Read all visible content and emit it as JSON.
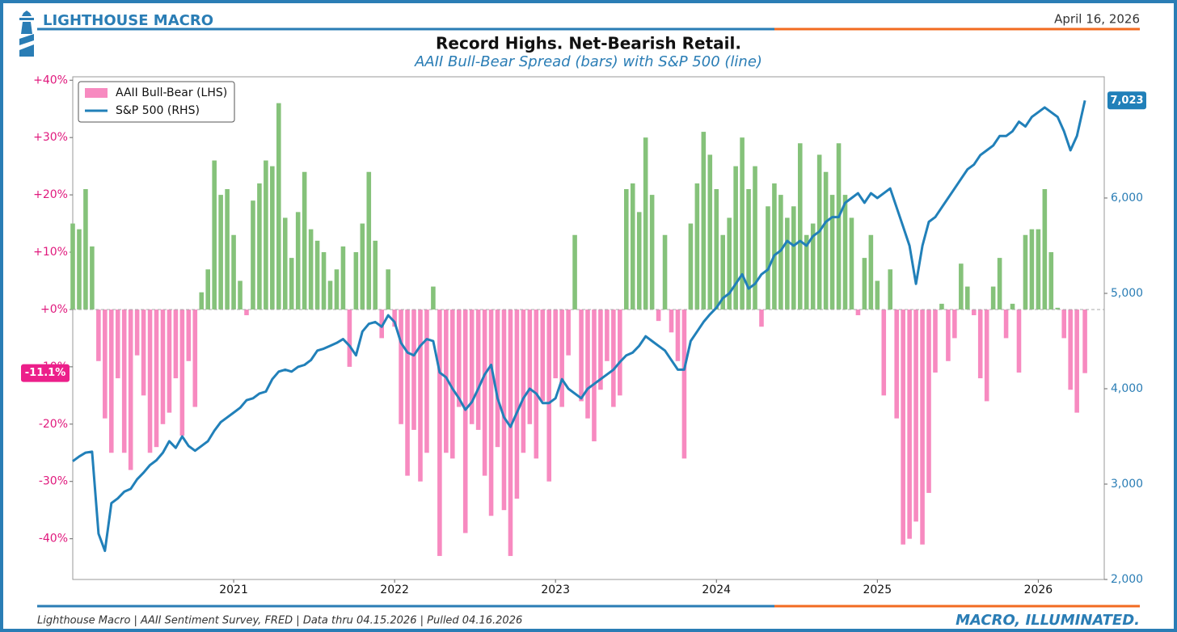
{
  "header": {
    "brand": "LIGHTHOUSE MACRO",
    "date": "April 16, 2026"
  },
  "footer": {
    "source": "Lighthouse Macro | AAII Sentiment Survey, FRED | Data thru 04.15.2026 | Pulled 04.16.2026",
    "tagline": "MACRO, ILLUMINATED."
  },
  "chart_data": {
    "type": "bar",
    "title": "Record Highs. Net-Bearish Retail.",
    "subtitle": "AAII Bull-Bear Spread (bars) with S&P 500 (line)",
    "legend": "upper left",
    "x": [
      2020.0,
      2020.04,
      2020.08,
      2020.12,
      2020.16,
      2020.2,
      2020.24,
      2020.28,
      2020.32,
      2020.36,
      2020.4,
      2020.44,
      2020.48,
      2020.52,
      2020.56,
      2020.6,
      2020.64,
      2020.68,
      2020.72,
      2020.76,
      2020.8,
      2020.84,
      2020.88,
      2020.92,
      2020.96,
      2021.0,
      2021.04,
      2021.08,
      2021.12,
      2021.16,
      2021.2,
      2021.24,
      2021.28,
      2021.32,
      2021.36,
      2021.4,
      2021.44,
      2021.48,
      2021.52,
      2021.56,
      2021.6,
      2021.64,
      2021.68,
      2021.72,
      2021.76,
      2021.8,
      2021.84,
      2021.88,
      2021.92,
      2021.96,
      2022.0,
      2022.04,
      2022.08,
      2022.12,
      2022.16,
      2022.2,
      2022.24,
      2022.28,
      2022.32,
      2022.36,
      2022.4,
      2022.44,
      2022.48,
      2022.52,
      2022.56,
      2022.6,
      2022.64,
      2022.68,
      2022.72,
      2022.76,
      2022.8,
      2022.84,
      2022.88,
      2022.92,
      2022.96,
      2023.0,
      2023.04,
      2023.08,
      2023.12,
      2023.16,
      2023.2,
      2023.24,
      2023.28,
      2023.32,
      2023.36,
      2023.4,
      2023.44,
      2023.48,
      2023.52,
      2023.56,
      2023.6,
      2023.64,
      2023.68,
      2023.72,
      2023.76,
      2023.8,
      2023.84,
      2023.88,
      2023.92,
      2023.96,
      2024.0,
      2024.04,
      2024.08,
      2024.12,
      2024.16,
      2024.2,
      2024.24,
      2024.28,
      2024.32,
      2024.36,
      2024.4,
      2024.44,
      2024.48,
      2024.52,
      2024.56,
      2024.6,
      2024.64,
      2024.68,
      2024.72,
      2024.76,
      2024.8,
      2024.84,
      2024.88,
      2024.92,
      2024.96,
      2025.0,
      2025.04,
      2025.08,
      2025.12,
      2025.16,
      2025.2,
      2025.24,
      2025.28,
      2025.32,
      2025.36,
      2025.4,
      2025.44,
      2025.48,
      2025.52,
      2025.56,
      2025.6,
      2025.64,
      2025.68,
      2025.72,
      2025.76,
      2025.8,
      2025.84,
      2025.88,
      2025.92,
      2025.96,
      2026.0,
      2026.04,
      2026.08,
      2026.12,
      2026.16,
      2026.2,
      2026.24,
      2026.29
    ],
    "xlim": [
      2020.0,
      2026.41
    ],
    "xticks": [
      2021,
      2022,
      2023,
      2024,
      2025,
      2026
    ],
    "ylim": [
      -47.1,
      40.6
    ],
    "yticks": [
      {
        "value": 40,
        "label": "+40%"
      },
      {
        "value": 30,
        "label": "+30%"
      },
      {
        "value": 20,
        "label": "+20%"
      },
      {
        "value": 10,
        "label": "+10%"
      },
      {
        "value": 0,
        "label": "+0%"
      },
      {
        "value": -10,
        "label": "-10%"
      },
      {
        "value": -20,
        "label": "-20%"
      },
      {
        "value": -30,
        "label": "-30%"
      },
      {
        "value": -40,
        "label": "-40%"
      }
    ],
    "y2lim": [
      2000,
      7271
    ],
    "y2ticks": [
      {
        "value": 2000,
        "label": "2,000"
      },
      {
        "value": 3000,
        "label": "3,000"
      },
      {
        "value": 4000,
        "label": "4,000"
      },
      {
        "value": 5000,
        "label": "5,000"
      },
      {
        "value": 6000,
        "label": "6,000"
      }
    ],
    "series": [
      {
        "name": "AAII Bull-Bear (LHS)",
        "type": "bar",
        "color": "#f78ac0",
        "positive_color": "#85c27a",
        "end_label": "-11.1%",
        "values": [
          15,
          14,
          21,
          11,
          -9,
          -19,
          -25,
          -12,
          -25,
          -28,
          -8,
          -15,
          -25,
          -24,
          -20,
          -18,
          -12,
          -22,
          -9,
          -17,
          3,
          7,
          26,
          20,
          21,
          13,
          5,
          -1,
          19,
          22,
          26,
          25,
          36,
          16,
          9,
          17,
          24,
          14,
          12,
          10,
          5,
          7,
          11,
          -10,
          10,
          15,
          24,
          12,
          -5,
          7,
          -3,
          -20,
          -29,
          -21,
          -30,
          -25,
          4,
          -43,
          -25,
          -26,
          -17,
          -39,
          -20,
          -21,
          -29,
          -36,
          -24,
          -35,
          -43,
          -33,
          -25,
          -20,
          -26,
          -16,
          -30,
          -12,
          -17,
          -8,
          13,
          -16,
          -19,
          -23,
          -14,
          -9,
          -17,
          -15,
          21,
          22,
          17,
          30,
          20,
          -2,
          13,
          -4,
          -9,
          -26,
          15,
          22,
          31,
          27,
          21,
          13,
          16,
          25,
          30,
          21,
          25,
          -3,
          18,
          22,
          20,
          16,
          18,
          29,
          13,
          15,
          27,
          24,
          20,
          29,
          20,
          16,
          -1,
          9,
          13,
          5,
          -15,
          7,
          -19,
          -41,
          -40,
          -37,
          -41,
          -32,
          -11,
          1,
          -9,
          -5,
          8,
          4,
          -1,
          -12,
          -16,
          4,
          9,
          -5,
          1,
          -11,
          13,
          14,
          14,
          21,
          10,
          0.3,
          -5,
          -14,
          -18,
          -11.1
        ]
      },
      {
        "name": "S&P 500 (RHS)",
        "type": "line",
        "axis": "y2",
        "color": "#2180b9",
        "end_label": "7,023",
        "values": [
          3240,
          3290,
          3330,
          3340,
          2480,
          2300,
          2800,
          2850,
          2920,
          2950,
          3050,
          3120,
          3200,
          3250,
          3330,
          3450,
          3380,
          3500,
          3400,
          3350,
          3400,
          3450,
          3560,
          3650,
          3700,
          3750,
          3800,
          3880,
          3900,
          3950,
          3970,
          4100,
          4180,
          4200,
          4180,
          4230,
          4250,
          4300,
          4400,
          4420,
          4450,
          4480,
          4520,
          4450,
          4350,
          4600,
          4680,
          4700,
          4650,
          4770,
          4700,
          4480,
          4380,
          4350,
          4450,
          4520,
          4500,
          4170,
          4120,
          4000,
          3900,
          3780,
          3860,
          4000,
          4150,
          4250,
          3900,
          3700,
          3600,
          3750,
          3900,
          4000,
          3950,
          3850,
          3850,
          3900,
          4100,
          4000,
          3950,
          3900,
          4000,
          4050,
          4100,
          4150,
          4200,
          4280,
          4350,
          4380,
          4450,
          4550,
          4500,
          4450,
          4400,
          4300,
          4200,
          4200,
          4500,
          4600,
          4700,
          4780,
          4850,
          4950,
          5000,
          5100,
          5200,
          5050,
          5100,
          5200,
          5250,
          5400,
          5450,
          5550,
          5500,
          5550,
          5500,
          5600,
          5650,
          5750,
          5800,
          5800,
          5950,
          6000,
          6050,
          5950,
          6050,
          6000,
          6050,
          6100,
          5900,
          5700,
          5500,
          5100,
          5500,
          5750,
          5800,
          5900,
          6000,
          6100,
          6200,
          6300,
          6350,
          6450,
          6500,
          6550,
          6650,
          6650,
          6700,
          6800,
          6750,
          6850,
          6900,
          6950,
          6900,
          6850,
          6700,
          6500,
          6650,
          7023
        ]
      }
    ]
  }
}
